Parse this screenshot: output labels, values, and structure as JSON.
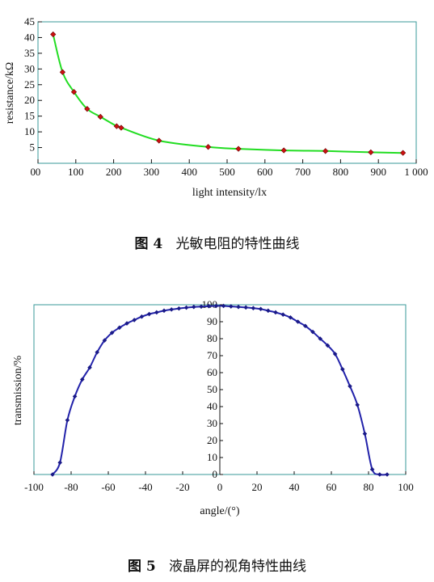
{
  "chart_data": [
    {
      "type": "line",
      "xlabel": "light intensity/lx",
      "ylabel": "resistance/kΩ",
      "xlim": [
        0,
        1000
      ],
      "ylim": [
        0,
        45
      ],
      "x_ticks": [
        "0",
        "100",
        "200",
        "300",
        "400",
        "500",
        "600",
        "700",
        "800",
        "900",
        "1 000"
      ],
      "y_ticks": [
        "5",
        "10",
        "15",
        "20",
        "25",
        "30",
        "35",
        "40",
        "45"
      ],
      "origin_label": "0",
      "line_color": "#22dd22",
      "marker_color": "#cc1111",
      "series": [
        {
          "x": [
            40,
            65,
            95,
            130,
            165,
            208,
            220,
            320,
            450,
            530,
            650,
            760,
            880,
            965
          ],
          "values": [
            41,
            29,
            22.7,
            17.3,
            14.8,
            11.8,
            11.3,
            7.2,
            5.2,
            4.6,
            4.1,
            3.9,
            3.5,
            3.3
          ]
        }
      ]
    },
    {
      "type": "line",
      "xlabel": "angle/(°)",
      "ylabel": "transmission/%",
      "xlim": [
        -100,
        100
      ],
      "ylim": [
        0,
        100
      ],
      "x_ticks": [
        "-100",
        "-80",
        "-60",
        "-40",
        "-20",
        "0",
        "20",
        "40",
        "60",
        "80",
        "100"
      ],
      "y_ticks": [
        "0",
        "10",
        "20",
        "30",
        "40",
        "50",
        "60",
        "70",
        "80",
        "90",
        "100"
      ],
      "line_color": "#2222aa",
      "marker_color": "#1a1a88",
      "series": [
        {
          "x": [
            -90,
            -86,
            -82,
            -78,
            -74,
            -70,
            -66,
            -62,
            -58,
            -54,
            -50,
            -46,
            -42,
            -38,
            -34,
            -30,
            -26,
            -22,
            -18,
            -14,
            -10,
            -6,
            -2,
            2,
            6,
            10,
            14,
            18,
            22,
            26,
            30,
            34,
            38,
            42,
            46,
            50,
            54,
            58,
            62,
            66,
            70,
            74,
            78,
            82,
            86,
            90
          ],
          "values": [
            0,
            7,
            32,
            46,
            56,
            63,
            72,
            79,
            83.5,
            86.5,
            89,
            91,
            93,
            94.5,
            95.5,
            96.5,
            97.2,
            97.8,
            98.3,
            98.7,
            98.9,
            99.2,
            99.3,
            99.3,
            99,
            98.7,
            98.4,
            98,
            97.5,
            96.5,
            95.5,
            94.2,
            92.5,
            90,
            87.5,
            84,
            80,
            76,
            71,
            62,
            52,
            41,
            24,
            3,
            0,
            0
          ]
        }
      ]
    }
  ],
  "captions": {
    "fig4_number": "图 4",
    "fig4_text": "光敏电阻的特性曲线",
    "fig5_number": "图 5",
    "fig5_text": "液晶屏的视角特性曲线"
  }
}
